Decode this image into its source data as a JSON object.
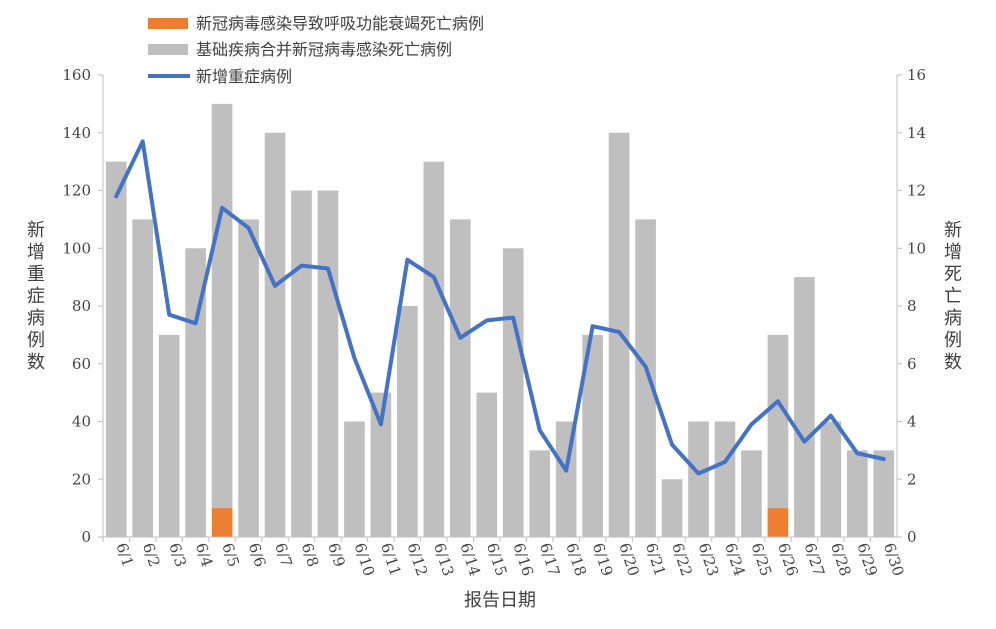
{
  "chart_data": {
    "type": "bar",
    "legend": {
      "position": "top-left",
      "entries": [
        {
          "label": "新冠病毒感染导致呼吸功能衰竭死亡病例",
          "kind": "bar",
          "color": "#ED7D31"
        },
        {
          "label": "基础疾病合并新冠病毒感染死亡病例",
          "kind": "bar",
          "color": "#BFBFBF"
        },
        {
          "label": "新增重症病例",
          "kind": "line",
          "color": "#4472C4"
        }
      ]
    },
    "xlabel": "报告日期",
    "ylabel_left": "新增重症病例数",
    "ylabel_right": "新增死亡病例数",
    "ylim_left": [
      0,
      160
    ],
    "yticks_left": [
      0,
      20,
      40,
      60,
      80,
      100,
      120,
      140,
      160
    ],
    "ylim_right": [
      0,
      16
    ],
    "yticks_right": [
      0,
      2,
      4,
      6,
      8,
      10,
      12,
      14,
      16
    ],
    "grid": false,
    "categories": [
      "6/1",
      "6/2",
      "6/3",
      "6/4",
      "6/5",
      "6/6",
      "6/7",
      "6/8",
      "6/9",
      "6/10",
      "6/11",
      "6/12",
      "6/13",
      "6/14",
      "6/15",
      "6/16",
      "6/17",
      "6/18",
      "6/19",
      "6/20",
      "6/21",
      "6/22",
      "6/23",
      "6/24",
      "6/25",
      "6/26",
      "6/27",
      "6/28",
      "6/29",
      "6/30"
    ],
    "series": [
      {
        "name": "新冠病毒感染导致呼吸功能衰竭死亡病例",
        "type": "bar",
        "axis": "right",
        "stack": "deaths",
        "color": "#ED7D31",
        "values": [
          0,
          0,
          0,
          0,
          1,
          0,
          0,
          0,
          0,
          0,
          0,
          0,
          0,
          0,
          0,
          0,
          0,
          0,
          0,
          0,
          0,
          0,
          0,
          0,
          0,
          1,
          0,
          0,
          0,
          0
        ]
      },
      {
        "name": "基础疾病合并新冠病毒感染死亡病例",
        "type": "bar",
        "axis": "right",
        "stack": "deaths",
        "color": "#BFBFBF",
        "values": [
          13,
          11,
          7,
          10,
          14,
          11,
          14,
          12,
          12,
          4,
          5,
          8,
          13,
          11,
          5,
          10,
          3,
          4,
          7,
          14,
          11,
          2,
          4,
          4,
          3,
          6,
          9,
          4,
          3,
          3
        ]
      },
      {
        "name": "新增重症病例",
        "type": "line",
        "axis": "left",
        "color": "#4472C4",
        "values": [
          118,
          137,
          77,
          74,
          114,
          107,
          87,
          94,
          93,
          62,
          39,
          96,
          90,
          69,
          75,
          76,
          37,
          23,
          73,
          71,
          59,
          32,
          22,
          26,
          39,
          47,
          33,
          42,
          29,
          27
        ]
      }
    ]
  }
}
